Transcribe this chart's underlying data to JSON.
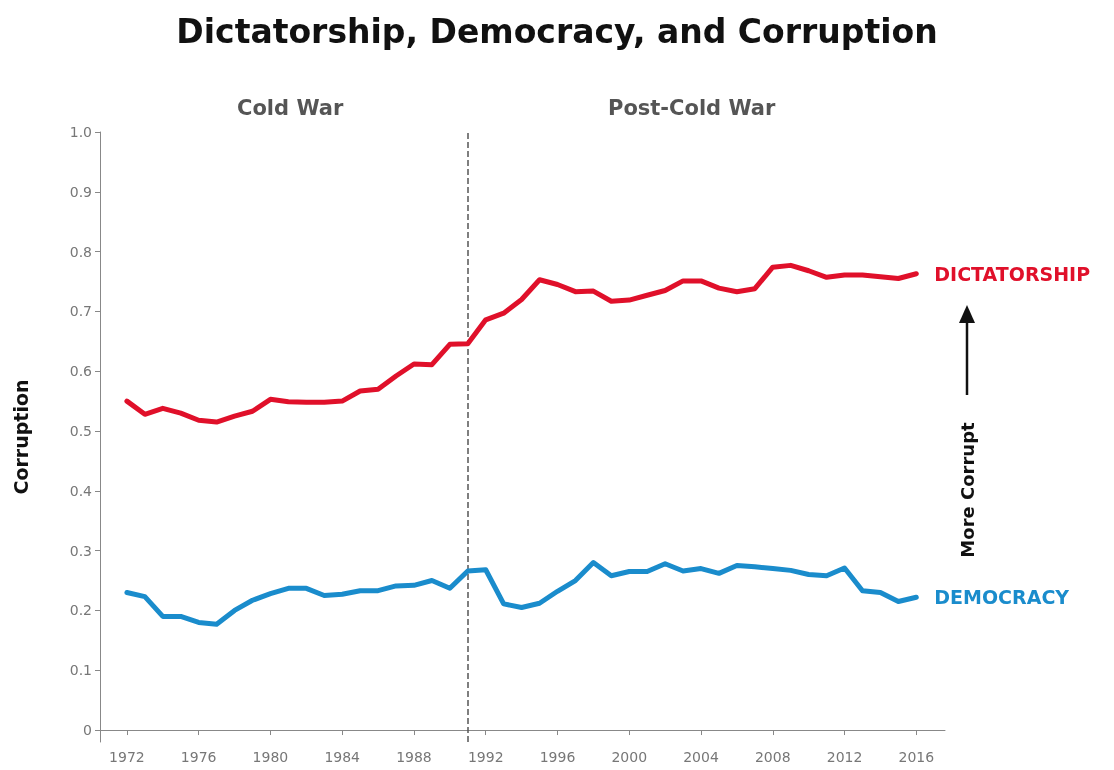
{
  "chart_data": {
    "type": "line",
    "title": "Dictatorship, Democracy, and Corruption",
    "ylabel": "Corruption",
    "x": [
      1972,
      1973,
      1974,
      1975,
      1976,
      1977,
      1978,
      1979,
      1980,
      1981,
      1982,
      1983,
      1984,
      1985,
      1986,
      1987,
      1988,
      1989,
      1990,
      1991,
      1992,
      1993,
      1994,
      1995,
      1996,
      1997,
      1998,
      1999,
      2000,
      2001,
      2002,
      2003,
      2004,
      2005,
      2006,
      2007,
      2008,
      2009,
      2010,
      2011,
      2012,
      2013,
      2014,
      2015,
      2016
    ],
    "series": [
      {
        "name": "DICTATORSHIP",
        "color": "#e0102a",
        "values": [
          0.55,
          0.528,
          0.538,
          0.53,
          0.518,
          0.515,
          0.525,
          0.533,
          0.553,
          0.549,
          0.548,
          0.548,
          0.55,
          0.567,
          0.57,
          0.592,
          0.612,
          0.611,
          0.645,
          0.646,
          0.686,
          0.697,
          0.72,
          0.753,
          0.745,
          0.733,
          0.734,
          0.717,
          0.719,
          0.727,
          0.735,
          0.751,
          0.751,
          0.739,
          0.733,
          0.738,
          0.774,
          0.777,
          0.768,
          0.757,
          0.761,
          0.761,
          0.758,
          0.755,
          0.763
        ]
      },
      {
        "name": "DEMOCRACY",
        "color": "#1a8ccc",
        "values": [
          0.23,
          0.223,
          0.19,
          0.19,
          0.18,
          0.177,
          0.2,
          0.217,
          0.228,
          0.237,
          0.237,
          0.225,
          0.227,
          0.233,
          0.233,
          0.241,
          0.242,
          0.25,
          0.237,
          0.266,
          0.268,
          0.211,
          0.205,
          0.212,
          0.232,
          0.25,
          0.28,
          0.258,
          0.265,
          0.265,
          0.278,
          0.266,
          0.27,
          0.262,
          0.275,
          0.273,
          0.27,
          0.267,
          0.26,
          0.258,
          0.271,
          0.233,
          0.23,
          0.215,
          0.222
        ]
      }
    ],
    "xlim": [
      1970.5,
      2017.6
    ],
    "xticks": [
      1972,
      1976,
      1980,
      1984,
      1988,
      1992,
      1996,
      2000,
      2004,
      2008,
      2012,
      2016
    ],
    "ylim": [
      -0.02,
      1.0
    ],
    "yticks": [
      0,
      0.1,
      0.2,
      0.3,
      0.4,
      0.5,
      0.6,
      0.7,
      0.8,
      0.9,
      {
        "value": 1.0,
        "label": "1.0"
      }
    ],
    "ref_lines": [
      {
        "axis": "x",
        "value": 1991,
        "color": "#555555",
        "line_style": "dashed"
      }
    ],
    "annotations": [
      "Cold War",
      "Post-Cold War",
      "More Corrupt"
    ],
    "grid": false,
    "legend": false,
    "marker": "none",
    "line_style": "solid"
  }
}
